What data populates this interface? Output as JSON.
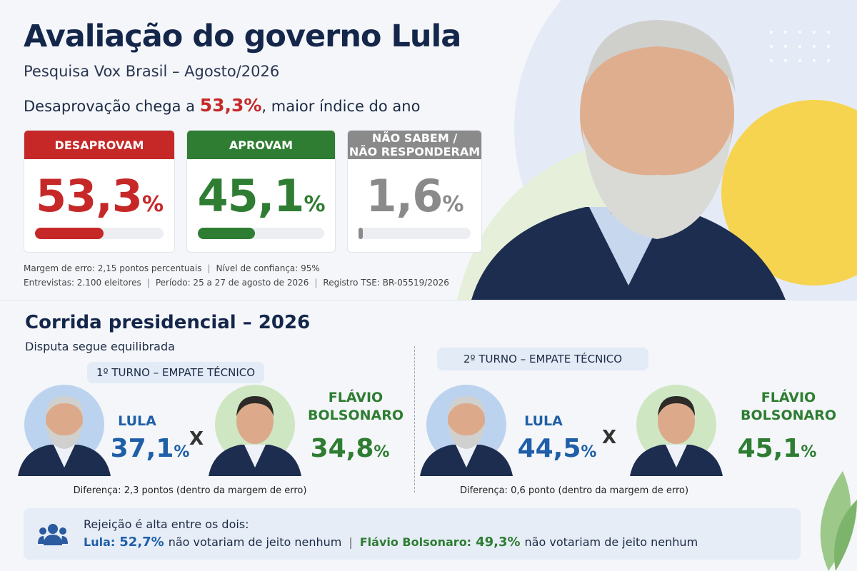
{
  "header": {
    "title": "Avaliação do governo Lula",
    "subtitle": "Pesquisa Vox Brasil – Agosto/2026",
    "headline": {
      "before": "Desaprovação chega a ",
      "highlight": "53,3%",
      "after": ", maior índice do ano"
    }
  },
  "cards": [
    {
      "label_lines": [
        "DESAPROVAM"
      ],
      "value": "53,3",
      "unit": "%",
      "color": "#c62828"
    },
    {
      "label_lines": [
        "APROVAM"
      ],
      "value": "45,1",
      "unit": "%",
      "color": "#2e7d32"
    },
    {
      "label_lines": [
        "NÃO SABEM /",
        "NÃO RESPONDERAM"
      ],
      "value": "1,6",
      "unit": "%",
      "color": "#8a8a8a"
    }
  ],
  "notes": {
    "separator": "|",
    "lines": [
      [
        "Margem de erro: 2,15 pontos percentuais",
        "Nível de confiança: 95%"
      ],
      [
        "Entrevistas: 2.100 eleitores",
        "Período: 25 a 27 de agosto de 2026",
        "Registro TSE: BR-05519/2026"
      ]
    ]
  },
  "race": {
    "title": "Corrida presidencial – 2026",
    "subtitle": "Disputa segue equilibrada",
    "versus": "X",
    "rounds": [
      {
        "label": "1º TURNO – EMPATE TÉCNICO",
        "candidates": [
          {
            "name_lines": [
              "LULA"
            ],
            "value": "37,1",
            "unit": "%",
            "color": "#1f5fa8"
          },
          {
            "name_lines": [
              "FLÁVIO",
              "BOLSONARO"
            ],
            "value": "34,8",
            "unit": "%",
            "color": "#2e7d32"
          }
        ],
        "difference": "Diferença: 2,3 pontos (dentro da margem de erro)"
      },
      {
        "label": "2º TURNO – EMPATE TÉCNICO",
        "candidates": [
          {
            "name_lines": [
              "LULA"
            ],
            "value": "44,5",
            "unit": "%",
            "color": "#1f5fa8"
          },
          {
            "name_lines": [
              "FLÁVIO",
              "BOLSONARO"
            ],
            "value": "45,1",
            "unit": "%",
            "color": "#2e7d32"
          }
        ],
        "difference": "Diferença: 0,6 ponto (dentro da margem de erro)"
      }
    ]
  },
  "rejection": {
    "title": "Rejeição é alta entre os dois:",
    "separator": "|",
    "items": [
      {
        "name": "Lula:",
        "value": "52,7%",
        "text": "não votariam de jeito nenhum",
        "color": "#1f5fa8"
      },
      {
        "name": "Flávio Bolsonaro:",
        "value": "49,3%",
        "text": "não votariam de jeito nenhum",
        "color": "#2e7d32"
      }
    ]
  }
}
